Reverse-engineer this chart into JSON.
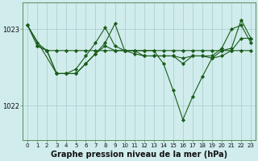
{
  "bg_color": "#d0ecec",
  "grid_color": "#a8cccc",
  "line_color": "#1a5c1a",
  "marker_color": "#1a5c1a",
  "xlabel": "Graphe pression niveau de la mer (hPa)",
  "xlabel_fontsize": 7,
  "ylabel_left_ticks": [
    1022,
    1023
  ],
  "xlim": [
    -0.5,
    23.5
  ],
  "ylim": [
    1021.55,
    1023.35
  ],
  "xticks": [
    0,
    1,
    2,
    3,
    4,
    5,
    6,
    7,
    8,
    9,
    10,
    11,
    12,
    13,
    14,
    15,
    16,
    17,
    18,
    19,
    20,
    21,
    22,
    23
  ],
  "series": [
    {
      "x": [
        0,
        1,
        2,
        3,
        4,
        5,
        6,
        7,
        8,
        9,
        10,
        11,
        12,
        13,
        14,
        15,
        16,
        17,
        18,
        19,
        20,
        21,
        22,
        23
      ],
      "y": [
        1023.05,
        1022.82,
        1022.72,
        1022.72,
        1022.72,
        1022.72,
        1022.72,
        1022.72,
        1022.72,
        1022.72,
        1022.72,
        1022.72,
        1022.72,
        1022.72,
        1022.72,
        1022.72,
        1022.72,
        1022.72,
        1022.72,
        1022.72,
        1022.72,
        1022.72,
        1022.72,
        1022.72
      ]
    },
    {
      "x": [
        0,
        1,
        2,
        3,
        4,
        5,
        6,
        7,
        8,
        9,
        10,
        11,
        12,
        13,
        14,
        15,
        16,
        17,
        18,
        19,
        20,
        21,
        22,
        23
      ],
      "y": [
        1023.05,
        1022.78,
        1022.72,
        1022.42,
        1022.42,
        1022.42,
        1022.55,
        1022.68,
        1022.78,
        1022.72,
        1022.72,
        1022.72,
        1022.72,
        1022.72,
        1022.55,
        1022.2,
        1021.82,
        1022.12,
        1022.38,
        1022.62,
        1022.72,
        1022.75,
        1023.12,
        1022.88
      ]
    },
    {
      "x": [
        1,
        2,
        3,
        4,
        5,
        6,
        7,
        8,
        9,
        10,
        11,
        12,
        13,
        14,
        15,
        16,
        17,
        18,
        19,
        20,
        21,
        22,
        23
      ],
      "y": [
        1022.78,
        1022.72,
        1022.42,
        1022.42,
        1022.42,
        1022.55,
        1022.68,
        1022.82,
        1023.07,
        1022.72,
        1022.72,
        1022.65,
        1022.65,
        1022.65,
        1022.65,
        1022.62,
        1022.65,
        1022.65,
        1022.62,
        1022.65,
        1022.72,
        1022.88,
        1022.88
      ]
    },
    {
      "x": [
        0,
        3,
        4,
        5,
        6,
        7,
        8,
        9,
        10,
        11,
        12,
        13,
        14,
        15,
        16,
        17,
        18,
        19,
        20,
        21,
        22,
        23
      ],
      "y": [
        1023.05,
        1022.42,
        1022.42,
        1022.48,
        1022.65,
        1022.82,
        1023.02,
        1022.78,
        1022.72,
        1022.68,
        1022.65,
        1022.65,
        1022.65,
        1022.65,
        1022.55,
        1022.65,
        1022.65,
        1022.65,
        1022.75,
        1023.0,
        1023.05,
        1022.82
      ]
    }
  ],
  "figsize": [
    3.2,
    2.0
  ],
  "dpi": 100
}
